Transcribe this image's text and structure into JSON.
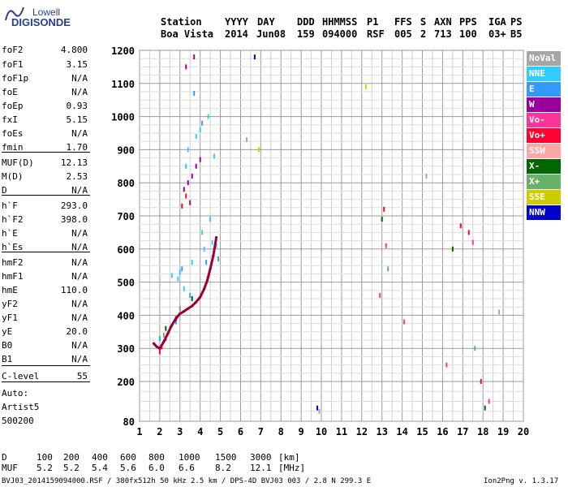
{
  "logo": {
    "top": "Lowell",
    "bottom": "DIGISONDE"
  },
  "header": {
    "labels": [
      "Station",
      "YYYY",
      "DAY",
      "DDD",
      "HHMMSS",
      "P1",
      "FFS",
      "S",
      "AXN",
      "PPS",
      "IGA",
      "PS"
    ],
    "values": [
      "Boa Vista",
      "2014",
      "Jun08",
      "159",
      "094000",
      "RSF",
      "005",
      "2",
      "713",
      "100",
      "03+",
      "B5"
    ]
  },
  "params": [
    {
      "name": "foF2",
      "value": "4.800"
    },
    {
      "name": "foF1",
      "value": "3.15"
    },
    {
      "name": "foF1p",
      "value": "N/A"
    },
    {
      "name": "foE",
      "value": "N/A"
    },
    {
      "name": "foEp",
      "value": "0.93"
    },
    {
      "name": "fxI",
      "value": "5.15"
    },
    {
      "name": "foEs",
      "value": "N/A"
    },
    {
      "name": "fmin",
      "value": "1.70"
    },
    {
      "name": "MUF(D)",
      "value": "12.13"
    },
    {
      "name": "M(D)",
      "value": "2.53"
    },
    {
      "name": "D",
      "value": "N/A"
    },
    {
      "name": "h`F",
      "value": "293.0"
    },
    {
      "name": "h`F2",
      "value": "398.0"
    },
    {
      "name": "h`E",
      "value": "N/A"
    },
    {
      "name": "h`Es",
      "value": "N/A"
    },
    {
      "name": "hmF2",
      "value": "N/A"
    },
    {
      "name": "hmF1",
      "value": "N/A"
    },
    {
      "name": "hmE",
      "value": "110.0"
    },
    {
      "name": "yF2",
      "value": "N/A"
    },
    {
      "name": "yF1",
      "value": "N/A"
    },
    {
      "name": "yE",
      "value": "20.0"
    },
    {
      "name": "B0",
      "value": "N/A"
    },
    {
      "name": "B1",
      "value": "N/A"
    },
    {
      "name": "C-level",
      "value": "55"
    }
  ],
  "auto": [
    "Auto:",
    "Artist5",
    "500200"
  ],
  "legend": [
    {
      "label": "NoVal",
      "color": "#a6a6a6"
    },
    {
      "label": "NNE",
      "color": "#33ccff"
    },
    {
      "label": "E",
      "color": "#3399ff"
    },
    {
      "label": "W",
      "color": "#990099"
    },
    {
      "label": "Vo-",
      "color": "#ff3399"
    },
    {
      "label": "Vo+",
      "color": "#ff0033"
    },
    {
      "label": "SSW",
      "color": "#ffa6a6"
    },
    {
      "label": "X-",
      "color": "#006600"
    },
    {
      "label": "X+",
      "color": "#66b266"
    },
    {
      "label": "SSE",
      "color": "#cccc00"
    },
    {
      "label": "NNW",
      "color": "#0000cc"
    }
  ],
  "muf_table": {
    "d_label": "D",
    "d_values": [
      "100",
      "200",
      "400",
      "600",
      "800",
      "1000",
      "1500",
      "3000"
    ],
    "d_unit": "[km]",
    "muf_label": "MUF",
    "muf_values": [
      "5.2",
      "5.2",
      "5.4",
      "5.6",
      "6.0",
      "6.6",
      "8.2",
      "12.1"
    ],
    "muf_unit": "[MHz]"
  },
  "footer": {
    "left": "BVJ03_2014159094000.RSF / 380fx512h 50 kHz 2.5 km / DPS-4D BVJ03 003 / 2.8 N 299.3 E",
    "right": "Ion2Png v. 1.3.17"
  },
  "chart_data": {
    "type": "scatter",
    "title": "",
    "xlabel": "",
    "ylabel": "",
    "xlim": [
      1,
      20
    ],
    "ylim": [
      80,
      1200
    ],
    "x_ticks": [
      1,
      2,
      3,
      4,
      5,
      6,
      7,
      8,
      9,
      10,
      11,
      12,
      13,
      14,
      15,
      16,
      17,
      18,
      19,
      20
    ],
    "y_ticks": [
      80,
      200,
      300,
      400,
      500,
      600,
      700,
      800,
      900,
      1000,
      1100,
      1200
    ],
    "grid": true,
    "legend_placement": "right",
    "trace": {
      "name": "Vo+",
      "color": "#990033",
      "x": [
        1.7,
        1.85,
        2.0,
        2.2,
        2.4,
        2.6,
        2.8,
        3.0,
        3.2,
        3.4,
        3.6,
        3.8,
        4.0,
        4.2,
        4.35,
        4.5,
        4.65,
        4.8
      ],
      "y": [
        315,
        305,
        300,
        320,
        345,
        370,
        390,
        405,
        412,
        420,
        428,
        440,
        455,
        480,
        505,
        540,
        580,
        635
      ]
    },
    "echo_regions": [
      {
        "name": "NNE",
        "color": "#33ccff",
        "x": [
          3.0,
          3.6,
          4.2,
          4.6,
          4.8,
          3.4,
          4.0,
          3.3,
          3.8,
          4.4,
          4.7,
          2.6,
          2.9,
          4.1,
          3.2,
          4.5
        ],
        "y": [
          530,
          560,
          600,
          620,
          610,
          900,
          960,
          850,
          940,
          1000,
          880,
          520,
          510,
          650,
          480,
          690
        ]
      },
      {
        "name": "E",
        "color": "#3399ff",
        "x": [
          2.0,
          2.5,
          2.8,
          3.5,
          3.1,
          4.3,
          4.9,
          3.7,
          4.1
        ],
        "y": [
          330,
          360,
          380,
          460,
          540,
          560,
          570,
          1070,
          980
        ]
      },
      {
        "name": "W",
        "color": "#990099",
        "x": [
          3.2,
          3.4,
          3.6,
          3.8,
          4.0,
          3.3,
          3.7,
          3.5
        ],
        "y": [
          780,
          800,
          820,
          850,
          870,
          1150,
          1180,
          740
        ]
      },
      {
        "name": "Vo+",
        "color": "#ff0033",
        "x": [
          2.0,
          2.1,
          2.3,
          3.1,
          3.3,
          13.1,
          16.9,
          17.3,
          17.9
        ],
        "y": [
          290,
          305,
          330,
          730,
          760,
          720,
          670,
          650,
          200
        ]
      },
      {
        "name": "Vo-",
        "color": "#ff3399",
        "x": [
          12.9,
          13.2,
          14.1,
          16.2,
          17.5,
          18.3
        ],
        "y": [
          460,
          610,
          380,
          250,
          620,
          140
        ]
      },
      {
        "name": "X-",
        "color": "#006600",
        "x": [
          2.3,
          2.8,
          3.6,
          13.0,
          16.5,
          18.1
        ],
        "y": [
          360,
          390,
          450,
          690,
          600,
          120
        ]
      },
      {
        "name": "X+",
        "color": "#66b266",
        "x": [
          2.2,
          3.0,
          13.3,
          17.6
        ],
        "y": [
          340,
          420,
          540,
          300
        ]
      },
      {
        "name": "NoVal",
        "color": "#a6a6a6",
        "x": [
          6.3,
          9.9,
          15.2,
          18.8
        ],
        "y": [
          930,
          110,
          820,
          410
        ]
      },
      {
        "name": "SSE",
        "color": "#cccc00",
        "x": [
          6.9,
          12.2
        ],
        "y": [
          900,
          1090
        ]
      },
      {
        "name": "NNW",
        "color": "#0000cc",
        "x": [
          6.7,
          9.8
        ],
        "y": [
          1180,
          120
        ]
      }
    ]
  }
}
